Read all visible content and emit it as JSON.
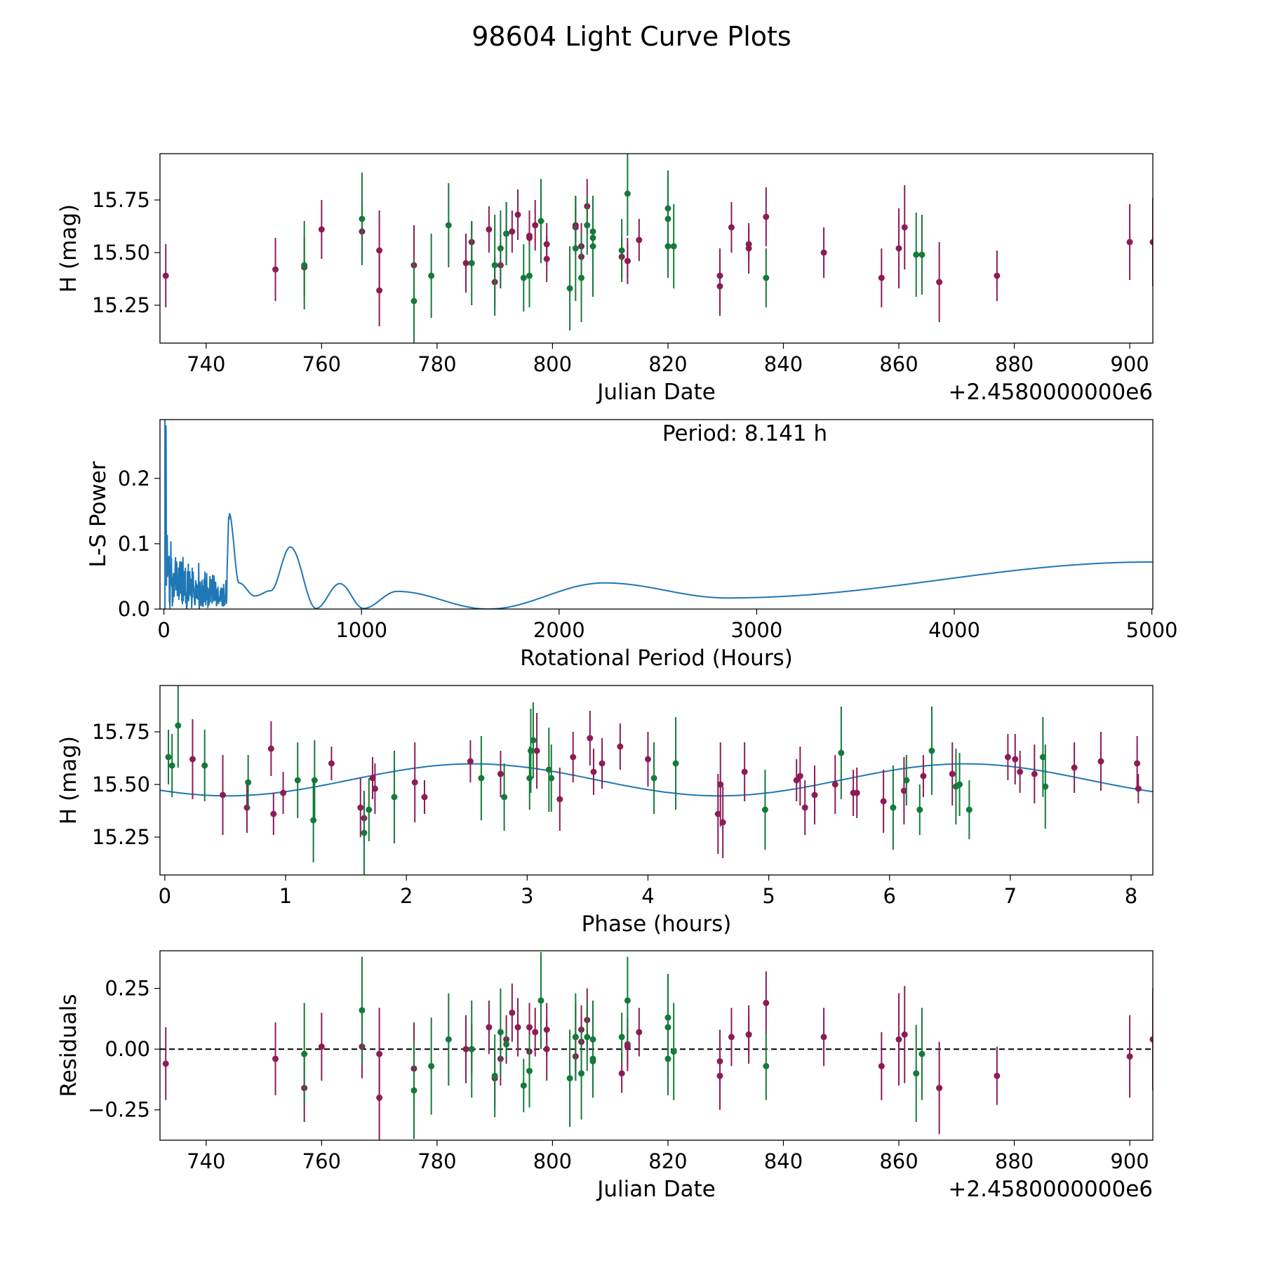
{
  "figure_title": "98604 Light Curve Plots",
  "colors": {
    "maroon": "#8c1c57",
    "green": "#157a3a",
    "curve": "#1f77b4",
    "zero_line": "#000000"
  },
  "chart_data": [
    {
      "type": "scatter",
      "name": "light-curve",
      "xlabel": "Julian Date",
      "ylabel": "H (mag)",
      "offset_label": "+2.4580000000e6",
      "xlim": [
        732,
        904
      ],
      "ylim": [
        15.07,
        15.97
      ],
      "xticks": [
        "740",
        "760",
        "780",
        "800",
        "820",
        "840",
        "860",
        "880",
        "900"
      ],
      "yticks": [
        "15.25",
        "15.50",
        "15.75"
      ],
      "series": [
        {
          "name": "maroon",
          "x": [
            733,
            752,
            757,
            760,
            767,
            770,
            770,
            776,
            785,
            786,
            789,
            790,
            791,
            792,
            793,
            794,
            796,
            796,
            797,
            799,
            799,
            804,
            804,
            805,
            805,
            806,
            812,
            813,
            813,
            815,
            829,
            829,
            831,
            834,
            834,
            837,
            847,
            857,
            860,
            861,
            867,
            877,
            900,
            904
          ],
          "y": [
            15.39,
            15.42,
            15.43,
            15.61,
            15.6,
            15.51,
            15.32,
            15.44,
            15.45,
            15.55,
            15.61,
            15.36,
            15.44,
            15.59,
            15.6,
            15.68,
            15.58,
            15.57,
            15.63,
            15.54,
            15.47,
            15.63,
            15.62,
            15.48,
            15.53,
            15.72,
            15.48,
            15.46,
            15.46,
            15.56,
            15.39,
            15.34,
            15.62,
            15.52,
            15.54,
            15.67,
            15.5,
            15.38,
            15.52,
            15.62,
            15.36,
            15.39,
            15.55,
            15.55
          ],
          "err": [
            0.15,
            0.15,
            0.14,
            0.14,
            0.14,
            0.19,
            0.17,
            0.19,
            0.14,
            0.1,
            0.11,
            0.12,
            0.11,
            0.15,
            0.1,
            0.12,
            0.12,
            0.1,
            0.12,
            0.1,
            0.11,
            0.14,
            0.1,
            0.1,
            0.11,
            0.13,
            0.1,
            0.11,
            0.08,
            0.1,
            0.13,
            0.14,
            0.12,
            0.12,
            0.08,
            0.14,
            0.12,
            0.14,
            0.19,
            0.2,
            0.19,
            0.12,
            0.18,
            0.21
          ]
        },
        {
          "name": "green",
          "x": [
            757,
            767,
            776,
            779,
            782,
            786,
            790,
            791,
            792,
            795,
            796,
            798,
            803,
            804,
            805,
            806,
            807,
            807,
            807,
            812,
            813,
            820,
            820,
            820,
            821,
            837,
            863,
            864
          ],
          "y": [
            15.44,
            15.66,
            15.27,
            15.39,
            15.63,
            15.45,
            15.44,
            15.52,
            15.59,
            15.38,
            15.39,
            15.65,
            15.33,
            15.52,
            15.38,
            15.63,
            15.6,
            15.57,
            15.53,
            15.51,
            15.78,
            15.71,
            15.66,
            15.53,
            15.53,
            15.38,
            15.49,
            15.49
          ],
          "err": [
            0.21,
            0.22,
            0.2,
            0.2,
            0.2,
            0.2,
            0.24,
            0.18,
            0.15,
            0.16,
            0.15,
            0.2,
            0.2,
            0.25,
            0.21,
            0.14,
            0.16,
            0.16,
            0.24,
            0.15,
            0.2,
            0.18,
            0.2,
            0.15,
            0.2,
            0.14,
            0.2,
            0.19
          ]
        }
      ]
    },
    {
      "type": "line",
      "name": "periodogram",
      "annotation": "Period: 8.141 h",
      "xlabel": "Rotational Period (Hours)",
      "ylabel": "L-S Power",
      "xlim": [
        -20,
        5005
      ],
      "ylim": [
        0,
        0.29
      ],
      "xticks": [
        "0",
        "1000",
        "2000",
        "3000",
        "4000",
        "5000"
      ],
      "yticks": [
        "0.0",
        "0.1",
        "0.2"
      ],
      "peaks": [
        [
          330,
          0.147
        ],
        [
          380,
          0.04
        ],
        [
          460,
          0.02
        ],
        [
          540,
          0.028
        ],
        [
          640,
          0.095
        ],
        [
          890,
          0.039
        ],
        [
          1180,
          0.027
        ],
        [
          2230,
          0.04
        ],
        [
          5000,
          0.072
        ]
      ],
      "valleys": [
        [
          770,
          0.001
        ],
        [
          1010,
          0.001
        ],
        [
          1640,
          0.0
        ],
        [
          2850,
          0.017
        ]
      ]
    },
    {
      "type": "scatter",
      "name": "phased-curve",
      "xlabel": "Phase (hours)",
      "ylabel": "H (mag)",
      "xlim": [
        -0.04,
        8.18
      ],
      "ylim": [
        15.07,
        15.97
      ],
      "xticks": [
        "0",
        "1",
        "2",
        "3",
        "4",
        "5",
        "6",
        "7",
        "8"
      ],
      "yticks": [
        "15.25",
        "15.50",
        "15.75"
      ],
      "model": {
        "mean": 15.522,
        "amp": 0.076,
        "period": 4.07,
        "phase0": 0.52
      },
      "series": [
        {
          "name": "maroon",
          "x": [
            0.23,
            0.48,
            0.68,
            0.88,
            0.9,
            0.98,
            1.38,
            1.62,
            1.65,
            1.72,
            1.74,
            2.07,
            2.15,
            2.53,
            2.78,
            3.08,
            3.27,
            3.38,
            3.52,
            3.55,
            3.62,
            3.77,
            4.0,
            4.58,
            4.6,
            4.62,
            4.8,
            5.23,
            5.26,
            5.3,
            5.38,
            5.55,
            5.7,
            5.73,
            5.95,
            6.12,
            6.28,
            6.52,
            6.98,
            7.04,
            7.08,
            7.2,
            7.53,
            7.75,
            8.05,
            8.06
          ],
          "y": [
            15.62,
            15.45,
            15.39,
            15.67,
            15.36,
            15.46,
            15.6,
            15.39,
            15.34,
            15.53,
            15.48,
            15.51,
            15.44,
            15.61,
            15.55,
            15.66,
            15.43,
            15.63,
            15.72,
            15.56,
            15.6,
            15.68,
            15.62,
            15.36,
            15.5,
            15.32,
            15.56,
            15.52,
            15.54,
            15.39,
            15.45,
            15.5,
            15.46,
            15.46,
            15.42,
            15.47,
            15.54,
            15.55,
            15.63,
            15.62,
            15.56,
            15.55,
            15.58,
            15.61,
            15.6,
            15.48
          ],
          "err": [
            0.19,
            0.19,
            0.12,
            0.13,
            0.1,
            0.1,
            0.08,
            0.14,
            0.12,
            0.1,
            0.12,
            0.19,
            0.08,
            0.1,
            0.11,
            0.18,
            0.15,
            0.12,
            0.13,
            0.11,
            0.12,
            0.11,
            0.13,
            0.19,
            0.2,
            0.17,
            0.14,
            0.1,
            0.14,
            0.13,
            0.14,
            0.14,
            0.11,
            0.12,
            0.15,
            0.16,
            0.1,
            0.15,
            0.11,
            0.12,
            0.1,
            0.14,
            0.12,
            0.14,
            0.13,
            0.07
          ]
        },
        {
          "name": "green",
          "x": [
            0.03,
            0.06,
            0.11,
            0.33,
            0.69,
            1.1,
            1.23,
            1.24,
            1.65,
            1.69,
            1.9,
            2.62,
            2.81,
            3.02,
            3.03,
            3.05,
            3.18,
            3.2,
            4.05,
            4.23,
            4.97,
            5.6,
            6.03,
            6.14,
            6.25,
            6.35,
            6.55,
            6.58,
            6.66,
            7.27,
            7.29
          ],
          "y": [
            15.63,
            15.59,
            15.78,
            15.59,
            15.51,
            15.52,
            15.33,
            15.52,
            15.27,
            15.38,
            15.44,
            15.53,
            15.44,
            15.53,
            15.66,
            15.71,
            15.57,
            15.53,
            15.53,
            15.6,
            15.38,
            15.65,
            15.39,
            15.52,
            15.38,
            15.66,
            15.49,
            15.5,
            15.38,
            15.63,
            15.49
          ],
          "err": [
            0.13,
            0.15,
            0.2,
            0.17,
            0.13,
            0.18,
            0.2,
            0.19,
            0.2,
            0.15,
            0.22,
            0.2,
            0.16,
            0.15,
            0.2,
            0.18,
            0.2,
            0.16,
            0.17,
            0.22,
            0.19,
            0.22,
            0.2,
            0.12,
            0.12,
            0.21,
            0.18,
            0.15,
            0.14,
            0.19,
            0.2
          ]
        }
      ]
    },
    {
      "type": "scatter",
      "name": "residuals",
      "xlabel": "Julian Date",
      "ylabel": "Residuals",
      "offset_label": "+2.4580000000e6",
      "xlim": [
        732,
        904
      ],
      "ylim": [
        -0.375,
        0.405
      ],
      "xticks": [
        "740",
        "760",
        "780",
        "800",
        "820",
        "840",
        "860",
        "880",
        "900"
      ],
      "yticks": [
        "0.25",
        "0.00",
        "−0.25"
      ],
      "reference_line": 0,
      "series": [
        {
          "name": "maroon",
          "x": [
            733,
            752,
            757,
            760,
            767,
            770,
            770,
            776,
            785,
            786,
            789,
            790,
            791,
            792,
            793,
            794,
            796,
            796,
            797,
            799,
            799,
            804,
            804,
            805,
            805,
            806,
            812,
            813,
            813,
            815,
            829,
            829,
            831,
            834,
            834,
            837,
            847,
            857,
            860,
            861,
            867,
            877,
            900,
            904
          ],
          "y": [
            -0.06,
            -0.04,
            -0.16,
            0.01,
            0.01,
            -0.2,
            -0.02,
            -0.08,
            0.0,
            0.0,
            0.09,
            -0.12,
            -0.04,
            0.04,
            0.15,
            0.09,
            0.09,
            -0.01,
            0.07,
            0.0,
            0.08,
            0.05,
            -0.03,
            0.08,
            0.03,
            0.12,
            -0.1,
            0.02,
            0.01,
            0.07,
            -0.05,
            -0.11,
            0.05,
            0.06,
            0.06,
            0.19,
            0.05,
            -0.07,
            0.04,
            0.06,
            -0.16,
            -0.11,
            -0.03,
            0.04
          ],
          "err": [
            0.15,
            0.15,
            0.14,
            0.14,
            0.13,
            0.18,
            0.19,
            0.19,
            0.14,
            0.1,
            0.11,
            0.12,
            0.11,
            0.1,
            0.12,
            0.12,
            0.1,
            0.12,
            0.1,
            0.13,
            0.11,
            0.14,
            0.1,
            0.1,
            0.11,
            0.13,
            0.08,
            0.11,
            0.08,
            0.1,
            0.13,
            0.14,
            0.12,
            0.08,
            0.12,
            0.13,
            0.12,
            0.14,
            0.19,
            0.2,
            0.19,
            0.12,
            0.17,
            0.21
          ]
        },
        {
          "name": "green",
          "x": [
            757,
            767,
            776,
            779,
            782,
            786,
            790,
            791,
            792,
            795,
            796,
            798,
            803,
            804,
            805,
            806,
            807,
            807,
            807,
            812,
            813,
            820,
            820,
            820,
            821,
            837,
            863,
            864
          ],
          "y": [
            -0.02,
            0.16,
            -0.17,
            -0.07,
            0.04,
            0.0,
            -0.11,
            0.07,
            0.02,
            -0.15,
            -0.09,
            0.2,
            -0.12,
            0.05,
            -0.1,
            0.05,
            0.04,
            -0.05,
            -0.04,
            0.05,
            0.2,
            0.13,
            0.09,
            -0.04,
            -0.01,
            -0.07,
            -0.1,
            -0.02
          ],
          "err": [
            0.21,
            0.22,
            0.2,
            0.2,
            0.19,
            0.2,
            0.17,
            0.18,
            0.06,
            0.11,
            0.15,
            0.2,
            0.2,
            0.18,
            0.19,
            0.14,
            0.16,
            0.15,
            0.07,
            0.1,
            0.18,
            0.18,
            0.2,
            0.15,
            0.2,
            0.14,
            0.2,
            0.19
          ]
        }
      ]
    }
  ]
}
